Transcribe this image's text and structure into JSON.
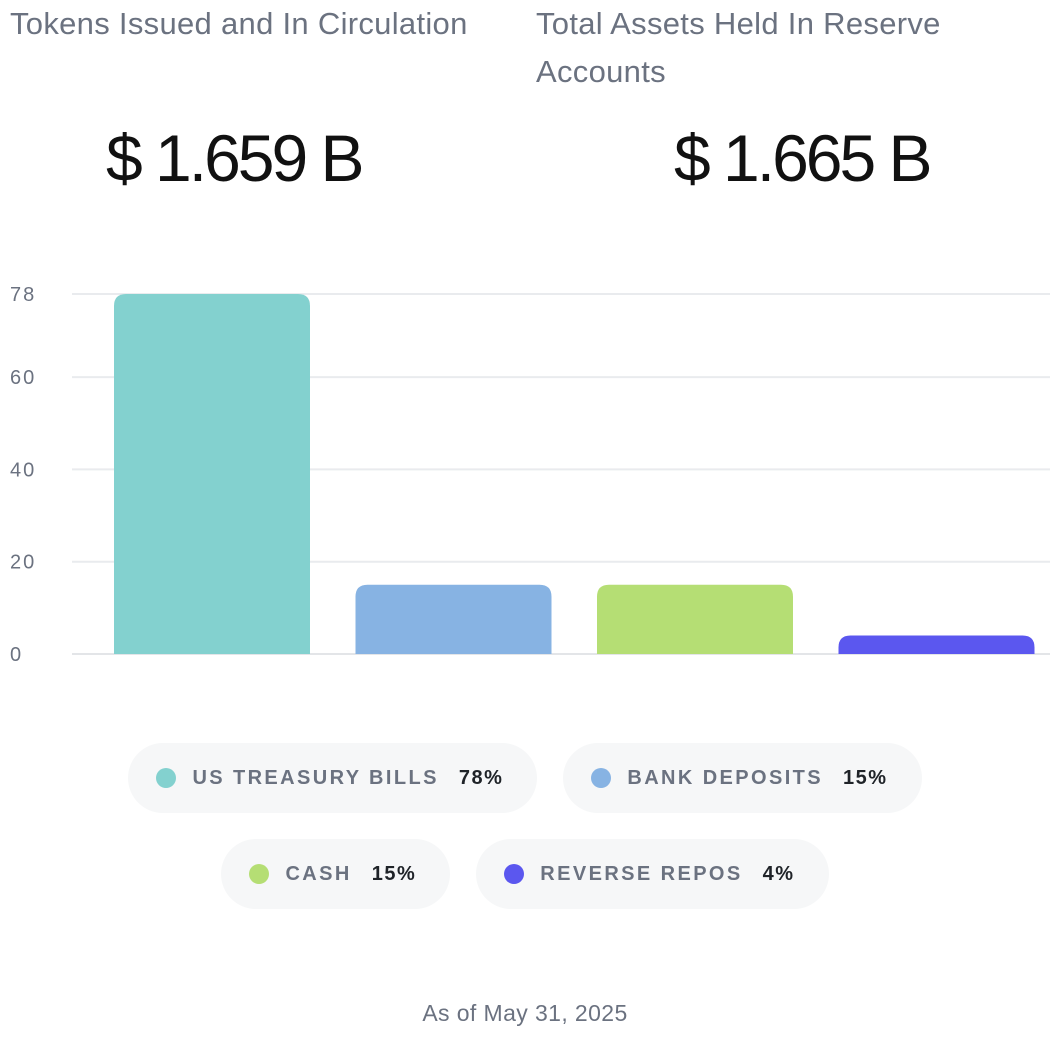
{
  "stats": {
    "tokens_label": "Tokens Issued and In Circulation",
    "tokens_value": "$ 1.659 B",
    "assets_label": "Total Assets Held In Reserve Accounts",
    "assets_value": "$ 1.665 B"
  },
  "chart_data": {
    "type": "bar",
    "title": "",
    "xlabel": "",
    "ylabel": "",
    "ylim": [
      0,
      78
    ],
    "yticks": [
      0,
      20,
      40,
      60,
      78
    ],
    "grid": true,
    "categories": [
      "US TREASURY BILLS",
      "BANK DEPOSITS",
      "CASH",
      "REVERSE REPOS"
    ],
    "values": [
      78,
      15,
      15,
      4
    ],
    "colors": [
      "#83d1cf",
      "#87b3e3",
      "#b5de74",
      "#5b57ef"
    ],
    "legend": {
      "placement": "bottom",
      "items": [
        {
          "name": "US TREASURY BILLS",
          "value": "78%",
          "color": "#83d1cf"
        },
        {
          "name": "BANK DEPOSITS",
          "value": "15%",
          "color": "#87b3e3"
        },
        {
          "name": "CASH",
          "value": "15%",
          "color": "#b5de74"
        },
        {
          "name": "REVERSE REPOS",
          "value": "4%",
          "color": "#5b57ef"
        }
      ]
    }
  },
  "footer": {
    "as_of": "As of May 31, 2025"
  }
}
